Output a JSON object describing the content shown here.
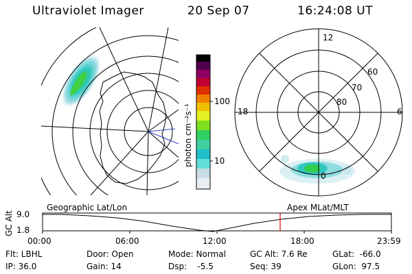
{
  "header": {
    "title": "Ultraviolet Imager",
    "date": "20 Sep 07",
    "time": "16:24:08 UT"
  },
  "colorbar": {
    "unit_label": "photon cm⁻²s⁻¹",
    "ticks": [
      "100",
      "10"
    ],
    "colors": [
      "#e8eef2",
      "#c8dde6",
      "#60e0d8",
      "#20c0c8",
      "#30d060",
      "#80e020",
      "#e0f020",
      "#f0c000",
      "#f08000",
      "#e03000",
      "#c00030",
      "#900060",
      "#500050",
      "#000000"
    ]
  },
  "polar_plot": {
    "mlt_labels": {
      "top": "12",
      "left": "18",
      "right": "6",
      "bottom": "0"
    },
    "lat_labels": [
      "60",
      "70",
      "80"
    ]
  },
  "timeline": {
    "left_label": "Geographic Lat/Lon",
    "right_label": "Apex MLat/MLT",
    "axis_title": "GC Alt",
    "y_ticks": [
      "9.0",
      "1.8"
    ],
    "x_ticks": [
      "00:00",
      "06:00",
      "12:00",
      "18:00",
      "23:59"
    ],
    "marker_color": "#e00000"
  },
  "info": {
    "flt": "Flt: LBHL",
    "ip": "IP: 36.0",
    "door": "Door: Open",
    "gain": "Gain: 14",
    "mode": "Mode: Normal",
    "dsp": "Dsp:    -5.5",
    "gcalt": "GC Alt: 7.6 Re",
    "seq": "Seq: 39",
    "glat": "GLat:  -66.0",
    "glon": "GLon:  97.5"
  }
}
